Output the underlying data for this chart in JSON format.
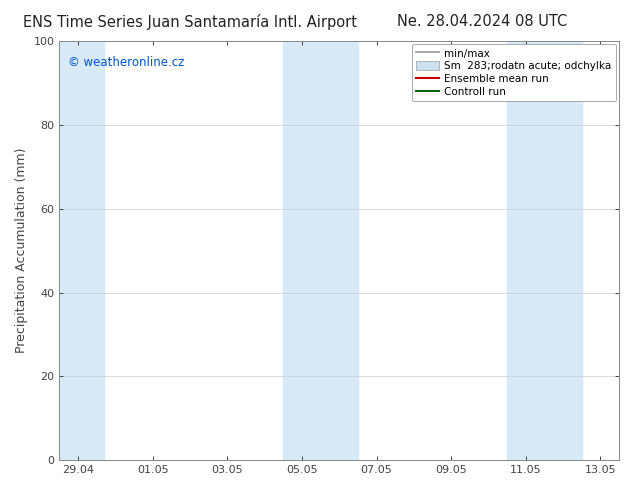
{
  "title_left": "ENS Time Series Juan Santamaría Intl. Airport",
  "title_right": "Ne. 28.04.2024 08 UTC",
  "ylabel": "Precipitation Accumulation (mm)",
  "watermark": "© weatheronline.cz",
  "watermark_color": "#0055cc",
  "ylim": [
    0,
    100
  ],
  "yticks": [
    0,
    20,
    40,
    60,
    80,
    100
  ],
  "xtick_labels": [
    "29.04",
    "01.05",
    "03.05",
    "05.05",
    "07.05",
    "09.05",
    "11.05",
    "13.05"
  ],
  "xtick_positions": [
    0,
    2,
    4,
    6,
    8,
    10,
    12,
    14
  ],
  "shaded_bands": [
    {
      "x_start": -0.3,
      "x_end": 0.7,
      "color": "#d6e8f5"
    },
    {
      "x_start": 5.7,
      "x_end": 6.7,
      "color": "#d6e8f5"
    },
    {
      "x_start": 11.7,
      "x_end": 12.7,
      "color": "#d6e8f5"
    },
    {
      "x_start": 6.3,
      "x_end": 7.3,
      "color": "#d6e8f5"
    },
    {
      "x_start": 12.3,
      "x_end": 13.3,
      "color": "#d6e8f5"
    }
  ],
  "legend_entries": [
    {
      "label": "min/max",
      "color": "#aaaaaa"
    },
    {
      "label": "Sm  283;rodatn acute; odchylka",
      "color": "#cce0f0"
    },
    {
      "label": "Ensemble mean run",
      "color": "#cc0000"
    },
    {
      "label": "Controll run",
      "color": "#006600"
    }
  ],
  "bg_color": "#ffffff",
  "plot_bg_color": "#ffffff",
  "spine_color": "#888888",
  "tick_color": "#444444",
  "title_fontsize": 10.5,
  "label_fontsize": 9,
  "tick_fontsize": 8,
  "x_min": -0.5,
  "x_max": 14.5,
  "band_pairs": [
    [
      0.0,
      0.5
    ],
    [
      5.75,
      6.25
    ],
    [
      6.75,
      7.25
    ],
    [
      11.75,
      12.25
    ],
    [
      12.75,
      13.25
    ]
  ]
}
